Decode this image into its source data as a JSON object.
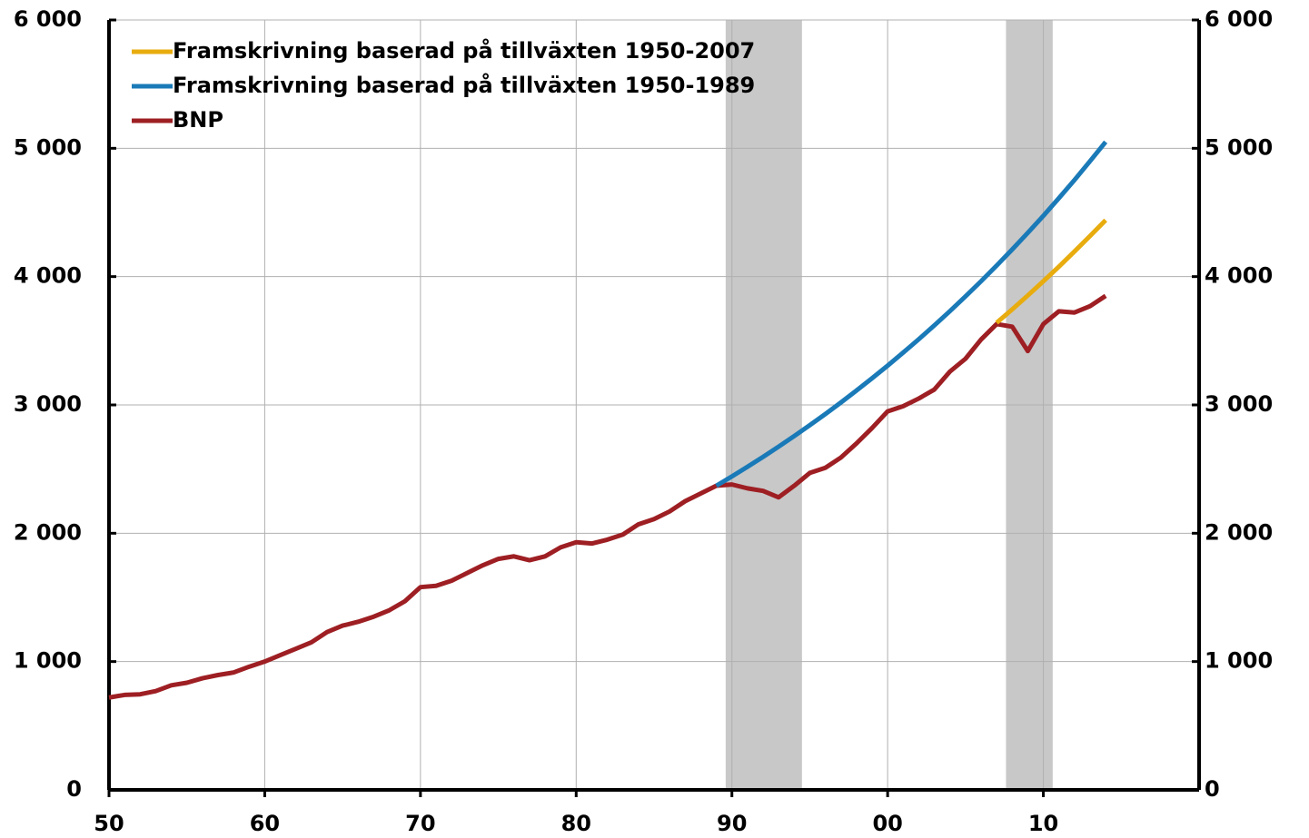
{
  "chart_data": {
    "type": "line",
    "xlim": [
      1950,
      2020
    ],
    "xticks": [
      {
        "value": 1950,
        "label": "50"
      },
      {
        "value": 1960,
        "label": "60"
      },
      {
        "value": 1970,
        "label": "70"
      },
      {
        "value": 1980,
        "label": "80"
      },
      {
        "value": 1990,
        "label": "90"
      },
      {
        "value": 2000,
        "label": "00"
      },
      {
        "value": 2010,
        "label": "10"
      }
    ],
    "ylim": [
      0,
      6000
    ],
    "yticks": [
      0,
      {
        "value": 1000,
        "label": "1 000"
      },
      {
        "value": 2000,
        "label": "2 000"
      },
      {
        "value": 3000,
        "label": "3 000"
      },
      {
        "value": 4000,
        "label": "4 000"
      },
      {
        "value": 5000,
        "label": "5 000"
      },
      {
        "value": 6000,
        "label": "6 000"
      }
    ],
    "grid": true,
    "legend": "top-left",
    "shaded_periods": [
      [
        1989.6,
        1994.5
      ],
      [
        2007.6,
        2010.6
      ]
    ],
    "shade_color": "#c8c8c8",
    "series": [
      {
        "name": "Framskrivning baserad på tillväxten 1950-2007",
        "color": "#e8ac0e",
        "x": [
          2007,
          2008,
          2009,
          2010,
          2011,
          2012,
          2013,
          2014
        ],
        "values": [
          3640,
          3745,
          3853,
          3964,
          4078,
          4196,
          4317,
          4440
        ]
      },
      {
        "name": "Framskrivning baserad på tillväxten 1950-1989",
        "color": "#1a7ab8",
        "x": [
          1989,
          1990,
          1991,
          1992,
          1993,
          1994,
          1995,
          1996,
          1997,
          1998,
          1999,
          2000,
          2001,
          2002,
          2003,
          2004,
          2005,
          2006,
          2007,
          2008,
          2009,
          2010,
          2011,
          2012,
          2013,
          2014
        ],
        "values": [
          2370,
          2443,
          2518,
          2595,
          2675,
          2757,
          2842,
          2929,
          3019,
          3112,
          3208,
          3306,
          3408,
          3512,
          3620,
          3731,
          3846,
          3964,
          4086,
          4212,
          4341,
          4474,
          4612,
          4753,
          4900,
          5050
        ]
      },
      {
        "name": "BNP",
        "color": "#9e1f23",
        "x": [
          1950,
          1951,
          1952,
          1953,
          1954,
          1955,
          1956,
          1957,
          1958,
          1959,
          1960,
          1961,
          1962,
          1963,
          1964,
          1965,
          1966,
          1967,
          1968,
          1969,
          1970,
          1971,
          1972,
          1973,
          1974,
          1975,
          1976,
          1977,
          1978,
          1979,
          1980,
          1981,
          1982,
          1983,
          1984,
          1985,
          1986,
          1987,
          1988,
          1989,
          1990,
          1991,
          1992,
          1993,
          1994,
          1995,
          1996,
          1997,
          1998,
          1999,
          2000,
          2001,
          2002,
          2003,
          2004,
          2005,
          2006,
          2007,
          2008,
          2009,
          2010,
          2011,
          2012,
          2013,
          2014
        ],
        "values": [
          720,
          740,
          745,
          770,
          815,
          835,
          870,
          895,
          915,
          960,
          1000,
          1050,
          1100,
          1150,
          1230,
          1280,
          1310,
          1350,
          1400,
          1470,
          1580,
          1590,
          1630,
          1690,
          1750,
          1800,
          1820,
          1790,
          1820,
          1890,
          1930,
          1920,
          1950,
          1990,
          2070,
          2110,
          2170,
          2250,
          2310,
          2370,
          2380,
          2350,
          2330,
          2280,
          2370,
          2470,
          2510,
          2590,
          2700,
          2820,
          2950,
          2990,
          3050,
          3120,
          3260,
          3360,
          3510,
          3630,
          3610,
          3420,
          3630,
          3730,
          3720,
          3770,
          3850
        ]
      }
    ]
  }
}
